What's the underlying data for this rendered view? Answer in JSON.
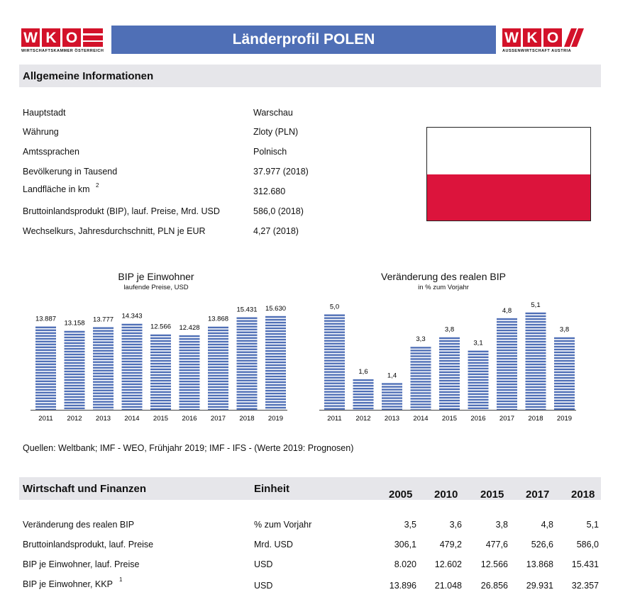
{
  "header": {
    "logo_left_text": "WKO",
    "logo_left_sub": "WIRTSCHAFTSKAMMER ÖSTERREICH",
    "title": "Länderprofil POLEN",
    "logo_right_text": "WKO",
    "logo_right_sub": "AUSSENWIRTSCHAFT AUSTRIA",
    "brand_color": "#d3122a",
    "title_bar_color": "#4f6fb6"
  },
  "general": {
    "heading": "Allgemeine Informationen",
    "rows": [
      {
        "label": "Hauptstadt",
        "value": "Warschau"
      },
      {
        "label": "Währung",
        "value": "Zloty (PLN)"
      },
      {
        "label": "Amtssprachen",
        "value": "Polnisch"
      },
      {
        "label": "Bevölkerung in Tausend",
        "value": "37.977 (2018)"
      },
      {
        "label": "Landfläche in km",
        "sup": "2",
        "value": "312.680"
      },
      {
        "label": "Bruttoinlandsprodukt (BIP), lauf. Preise, Mrd. USD",
        "value": "586,0 (2018)"
      },
      {
        "label": "Wechselkurs, Jahresdurchschnitt, PLN je EUR",
        "value": "4,27 (2018)"
      }
    ],
    "flag_colors": [
      "#ffffff",
      "#dc143c"
    ]
  },
  "chart_data": [
    {
      "type": "bar",
      "title": "BIP je Einwohner",
      "subtitle": "laufende Preise, USD",
      "categories": [
        "2011",
        "2012",
        "2013",
        "2014",
        "2015",
        "2016",
        "2017",
        "2018",
        "2019"
      ],
      "values": [
        13887,
        13158,
        13777,
        14343,
        12566,
        12428,
        13868,
        15431,
        15630
      ],
      "labels": [
        "13.887",
        "13.158",
        "13.777",
        "14.343",
        "12.566",
        "12.428",
        "13.868",
        "15.431",
        "15.630"
      ],
      "ylim": [
        0,
        17500
      ],
      "bar_color": "#4f6fb6",
      "grid": false
    },
    {
      "type": "bar",
      "title": "Veränderung des realen BIP",
      "subtitle": "in % zum Vorjahr",
      "categories": [
        "2011",
        "2012",
        "2013",
        "2014",
        "2015",
        "2016",
        "2017",
        "2018",
        "2019"
      ],
      "values": [
        5.0,
        1.6,
        1.4,
        3.3,
        3.8,
        3.1,
        4.8,
        5.1,
        3.8
      ],
      "labels": [
        "5,0",
        "1,6",
        "1,4",
        "3,3",
        "3,8",
        "3,1",
        "4,8",
        "5,1",
        "3,8"
      ],
      "ylim": [
        0,
        5.5
      ],
      "bar_color": "#4f6fb6",
      "grid": false
    }
  ],
  "sources": "Quellen: Weltbank; IMF - WEO, Frühjahr 2019; IMF - IFS - (Werte 2019: Prognosen)",
  "economy": {
    "heading": "Wirtschaft und Finanzen",
    "unit_header": "Einheit",
    "years": [
      "2005",
      "2010",
      "2015",
      "2017",
      "2018"
    ],
    "rows": [
      {
        "label": "Veränderung des realen BIP",
        "unit": "% zum Vorjahr",
        "values": [
          "3,5",
          "3,6",
          "3,8",
          "4,8",
          "5,1"
        ]
      },
      {
        "label": "Bruttoinlandsprodukt, lauf. Preise",
        "unit": "Mrd. USD",
        "values": [
          "306,1",
          "479,2",
          "477,6",
          "526,6",
          "586,0"
        ]
      },
      {
        "label": "BIP je Einwohner, lauf. Preise",
        "unit": "USD",
        "values": [
          "8.020",
          "12.602",
          "12.566",
          "13.868",
          "15.431"
        ]
      },
      {
        "label": "BIP je Einwohner, KKP",
        "sup": "1",
        "unit": "USD",
        "values": [
          "13.896",
          "21.048",
          "26.856",
          "29.931",
          "32.357"
        ]
      }
    ]
  }
}
